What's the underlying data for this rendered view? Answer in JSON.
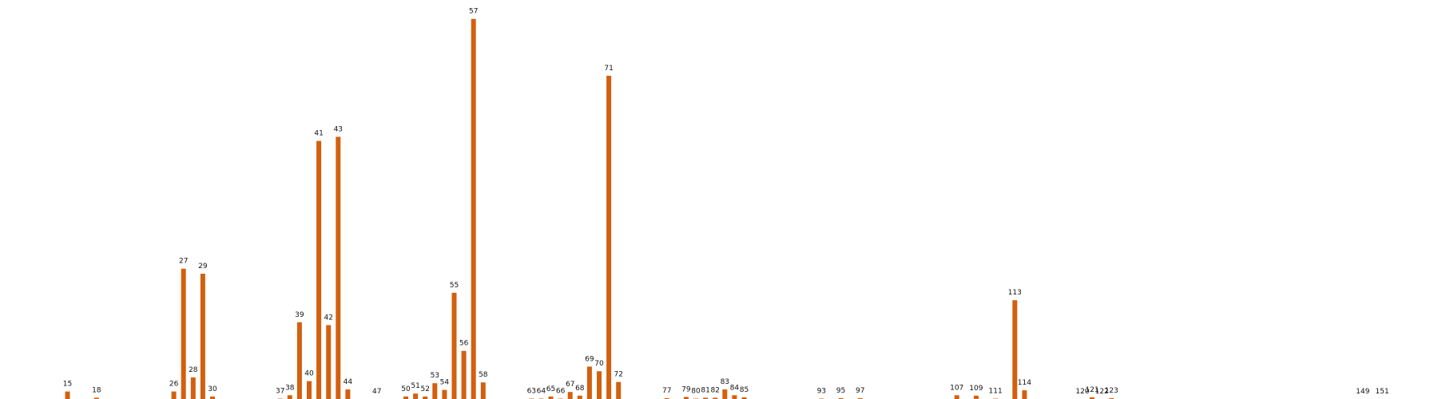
{
  "chart_data": {
    "type": "bar",
    "title": "",
    "xlabel": "",
    "ylabel": "",
    "grid": false,
    "legend": "none",
    "bar_color": "#d2600f",
    "ylim": [
      0,
      90
    ],
    "categories": [
      "15",
      "18",
      "26",
      "27",
      "28",
      "29",
      "30",
      "37",
      "38",
      "39",
      "40",
      "41",
      "42",
      "43",
      "44",
      "47",
      "50",
      "51",
      "52",
      "53",
      "54",
      "55",
      "56",
      "57",
      "58",
      "63",
      "64",
      "65",
      "66",
      "67",
      "68",
      "69",
      "70",
      "71",
      "72",
      "77",
      "79",
      "80",
      "81",
      "82",
      "83",
      "84",
      "85",
      "93",
      "95",
      "97",
      "107",
      "109",
      "111",
      "113",
      "114",
      "120",
      "121",
      "122",
      "123",
      "149",
      "151"
    ],
    "values": [
      1.8,
      0.3,
      1.8,
      31.4,
      5.2,
      30.2,
      0.6,
      0.1,
      0.9,
      18.5,
      4.3,
      62.2,
      17.8,
      63.2,
      2.3,
      0.0,
      0.6,
      1.3,
      0.6,
      3.8,
      2.2,
      25.6,
      11.6,
      91.6,
      4.0,
      0.1,
      0.1,
      0.6,
      0.1,
      1.7,
      0.8,
      7.8,
      6.7,
      77.9,
      4.1,
      0.2,
      0.5,
      0.1,
      0.3,
      0.3,
      2.3,
      0.9,
      0.4,
      0.1,
      0.2,
      0.2,
      0.9,
      0.8,
      0.1,
      23.8,
      2.1,
      0.0,
      0.4,
      0.0,
      0.2,
      0.0,
      0.0
    ],
    "x_positions": [
      15,
      18,
      26,
      27,
      28,
      29,
      30,
      37,
      38,
      39,
      40,
      41,
      42,
      43,
      44,
      47,
      50,
      51,
      52,
      53,
      54,
      55,
      56,
      57,
      58,
      63,
      64,
      65,
      66,
      67,
      68,
      69,
      70,
      71,
      72,
      77,
      79,
      80,
      81,
      82,
      83,
      84,
      85,
      93,
      95,
      97,
      107,
      109,
      111,
      113,
      114,
      120,
      121,
      122,
      123,
      149,
      151
    ]
  }
}
